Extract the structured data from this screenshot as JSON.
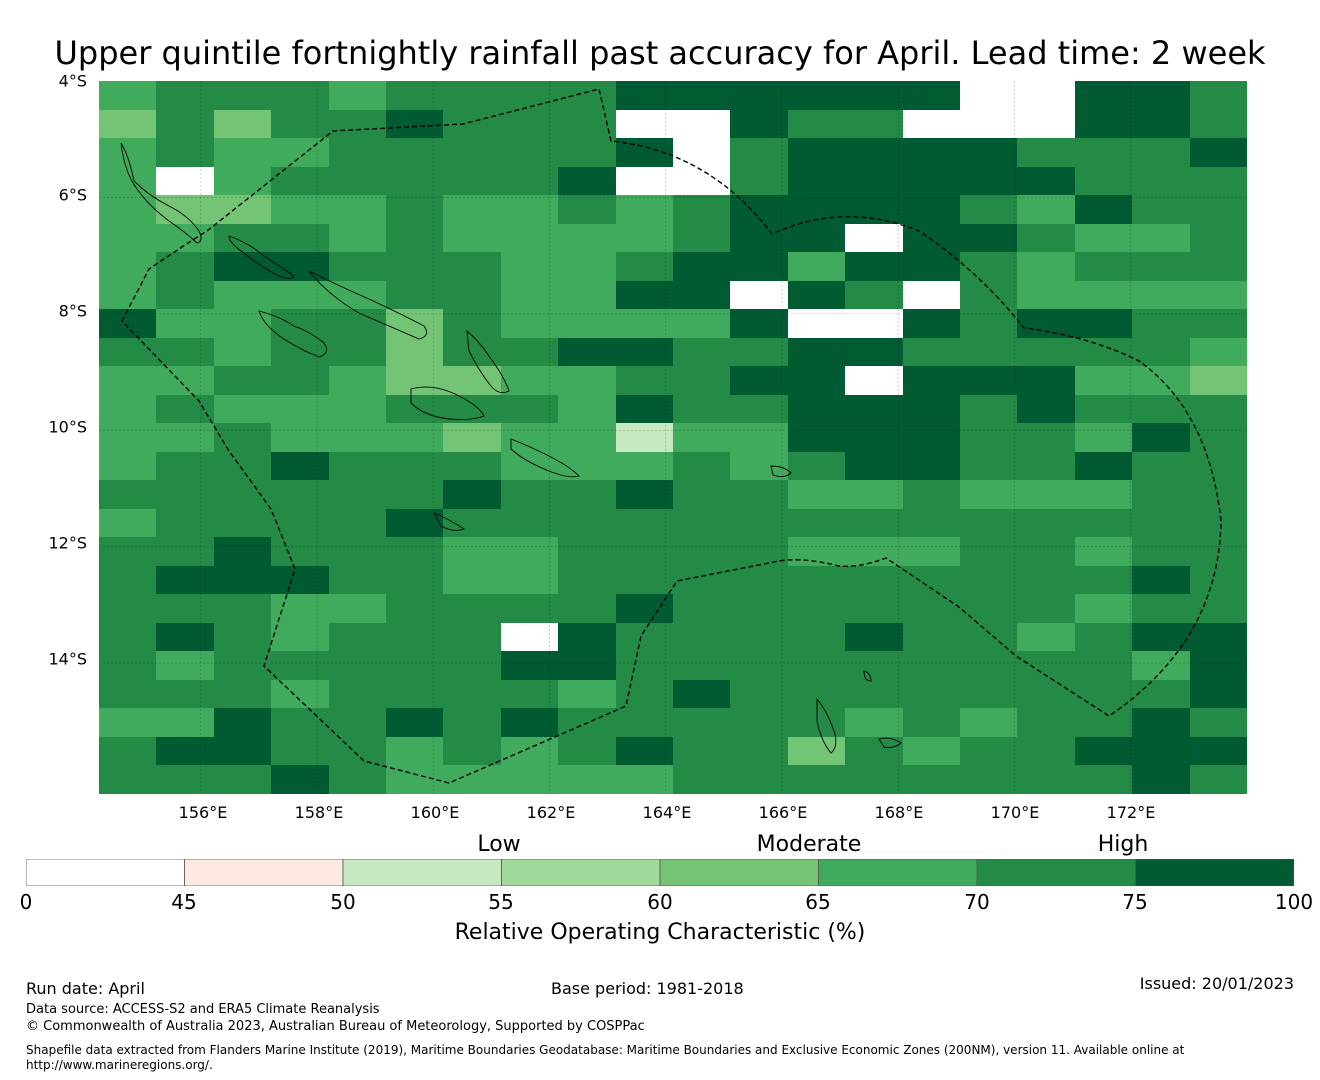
{
  "title": "Upper quintile fortnightly rainfall past accuracy for April. Lead time: 2 week",
  "map": {
    "region": "Solomon Islands and Vanuatu EEZ region",
    "lon_range": [
      154.25,
      174
    ],
    "lat_range": [
      -16.25,
      -4
    ],
    "grid_step_deg": 0.833,
    "lat_labels": [
      "4°S",
      "6°S",
      "8°S",
      "10°S",
      "12°S",
      "14°S"
    ],
    "lon_labels": [
      "156°E",
      "158°E",
      "160°E",
      "162°E",
      "164°E",
      "166°E",
      "168°E",
      "170°E",
      "172°E"
    ],
    "grid": [
      "56665666677777788776",
      "46466766688766888776",
      "56556666678677776667",
      "59566666788677777666",
      "54455655656777765766",
      "55665655556778776556",
      "56776665567757765666",
      "56555665577876865555",
      "75566465555788767766",
      "66566466776677666665",
      "55665445566778777554",
      "56555666576677767666",
      "55655545525577766576",
      "56676665556567766766",
      "66666676676655655566",
      "56666766666666666666",
      "66766655666655566566",
      "67776655666666666676",
      "66655666676666666566",
      "67656669766667665677",
      "65666667766666666657",
      "66656666567666666667",
      "55766767666665656676",
      "67766565676646566777",
      "66676555556666666676"
    ]
  },
  "colorbar": {
    "category_labels": [
      "Low",
      "Moderate",
      "High"
    ],
    "ticks": [
      "0",
      "45",
      "50",
      "55",
      "60",
      "65",
      "70",
      "75",
      "100"
    ],
    "bins": [
      0,
      45,
      50,
      55,
      60,
      65,
      70,
      75,
      100
    ],
    "colors": [
      "#ffffff",
      "#fee9e0",
      "#c7e9c0",
      "#a1d99b",
      "#74c476",
      "#41ab5d",
      "#238b45",
      "#005a32"
    ],
    "title": "Relative Operating Characteristic (%)"
  },
  "footer": {
    "run_date": "Run date: April",
    "base_period": "Base period: 1981-2018",
    "issued": "Issued: 20/01/2023",
    "data_source": "Data source: ACCESS-S2 and ERA5 Climate Reanalysis",
    "copyright": "© Commonwealth of Australia 2023, Australian Bureau of Meteorology, Supported by COSPPac",
    "shapefile": "Shapefile data extracted from Flanders Marine Institute (2019), Maritime Boundaries Geodatabase: Maritime Boundaries and Exclusive Economic Zones (200NM), version 11. Available online at http://www.marineregions.org/."
  }
}
